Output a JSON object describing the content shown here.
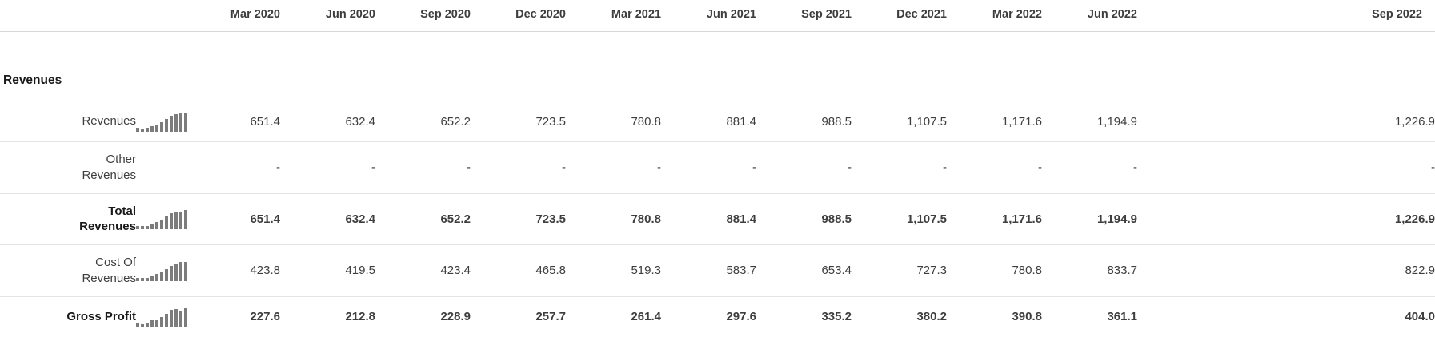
{
  "table": {
    "section_title": "Revenues",
    "columns": [
      "Mar 2020",
      "Jun 2020",
      "Sep 2020",
      "Dec 2020",
      "Mar 2021",
      "Jun 2021",
      "Sep 2021",
      "Dec 2021",
      "Mar 2022",
      "Jun 2022",
      "Sep 2022"
    ],
    "rows": [
      {
        "label": "Revenues",
        "emphasis": false,
        "sparkline": true,
        "values": [
          "651.4",
          "632.4",
          "652.2",
          "723.5",
          "780.8",
          "881.4",
          "988.5",
          "1,107.5",
          "1,171.6",
          "1,194.9",
          "1,226.9"
        ]
      },
      {
        "label": "Other Revenues",
        "emphasis": false,
        "sparkline": false,
        "values": [
          "-",
          "-",
          "-",
          "-",
          "-",
          "-",
          "-",
          "-",
          "-",
          "-",
          "-"
        ]
      },
      {
        "label": "Total Revenues",
        "emphasis": true,
        "sparkline": true,
        "values": [
          "651.4",
          "632.4",
          "652.2",
          "723.5",
          "780.8",
          "881.4",
          "988.5",
          "1,107.5",
          "1,171.6",
          "1,194.9",
          "1,226.9"
        ]
      },
      {
        "label": "Cost Of Revenues",
        "emphasis": false,
        "sparkline": true,
        "values": [
          "423.8",
          "419.5",
          "423.4",
          "465.8",
          "519.3",
          "583.7",
          "653.4",
          "727.3",
          "780.8",
          "833.7",
          "822.9"
        ]
      },
      {
        "label": "Gross Profit",
        "emphasis": true,
        "sparkline": true,
        "values": [
          "227.6",
          "212.8",
          "228.9",
          "257.7",
          "261.4",
          "297.6",
          "335.2",
          "380.2",
          "390.8",
          "361.1",
          "404.0"
        ]
      }
    ]
  },
  "colors": {
    "sparkline_bar": "#7c7c7c",
    "emphasis_text": "#191919",
    "muted_label": "#757575",
    "value_text": "#3e3e3e",
    "section_rule": "#9b9b9b",
    "row_rule": "#e4e4e4"
  }
}
